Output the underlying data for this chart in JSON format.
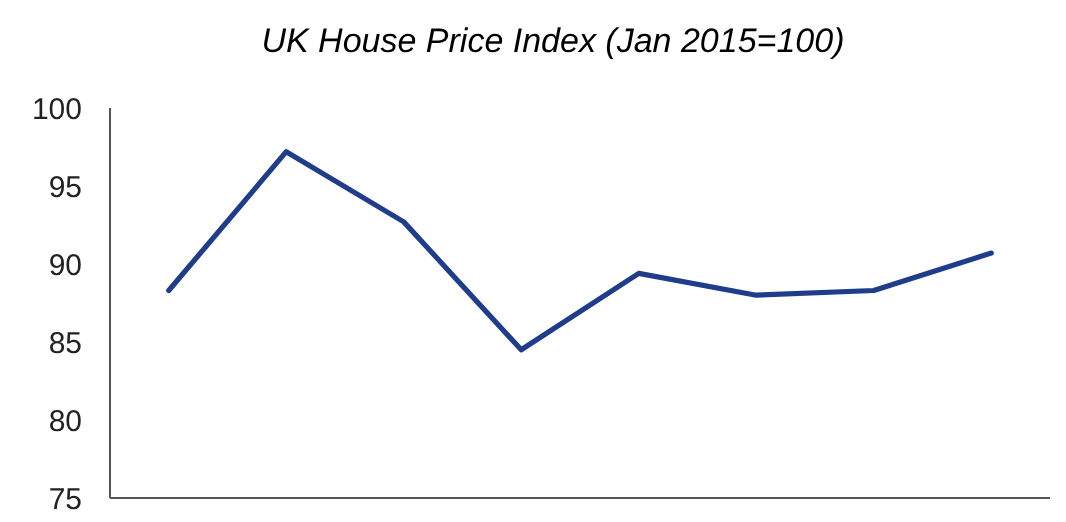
{
  "chart_data": {
    "type": "line",
    "title": "UK House Price Index (Jan 2015=100)",
    "categories": [
      null,
      null,
      null,
      null,
      null,
      null,
      null,
      null
    ],
    "series": [
      {
        "color": "#203d8c",
        "values": [
          88.3,
          97.2,
          92.7,
          84.5,
          89.4,
          88.0,
          88.3,
          90.7
        ]
      }
    ],
    "ylim": [
      75,
      100
    ],
    "yticks": [
      75,
      80,
      85,
      90,
      95,
      100
    ],
    "grid": false,
    "marker": "none",
    "line_style": "solid"
  }
}
